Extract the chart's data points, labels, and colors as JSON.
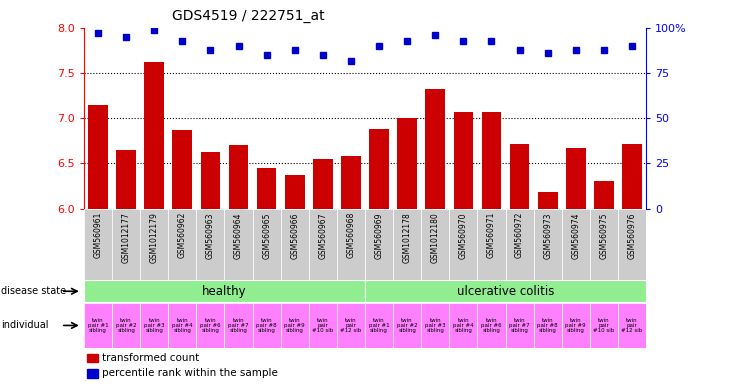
{
  "title": "GDS4519 / 222751_at",
  "bar_values": [
    7.15,
    6.65,
    7.62,
    6.87,
    6.63,
    6.7,
    6.45,
    6.37,
    6.55,
    6.58,
    6.88,
    7.0,
    7.32,
    7.07,
    7.07,
    6.72,
    6.18,
    6.67,
    6.3,
    6.72
  ],
  "percentile_values": [
    97,
    95,
    99,
    93,
    88,
    90,
    85,
    88,
    85,
    82,
    90,
    93,
    96,
    93,
    93,
    88,
    86,
    88,
    88,
    90
  ],
  "sample_ids": [
    "GSM560961",
    "GSM1012177",
    "GSM1012179",
    "GSM560962",
    "GSM560963",
    "GSM560964",
    "GSM560965",
    "GSM560966",
    "GSM560967",
    "GSM560968",
    "GSM560969",
    "GSM1012178",
    "GSM1012180",
    "GSM560970",
    "GSM560971",
    "GSM560972",
    "GSM560973",
    "GSM560974",
    "GSM560975",
    "GSM560976"
  ],
  "individual_labels": [
    "twin\npair #1\nsibling",
    "twin\npair #2\nsibling",
    "twin\npair #3\nsibling",
    "twin\npair #4\nsibling",
    "twin\npair #6\nsibling",
    "twin\npair #7\nsibling",
    "twin\npair #8\nsibling",
    "twin\npair #9\nsibling",
    "twin\npair\n#10 sib",
    "twin\npair\n#12 sib",
    "twin\npair #1\nsibling",
    "twin\npair #2\nsibling",
    "twin\npair #3\nsibling",
    "twin\npair #4\nsibling",
    "twin\npair #6\nsibling",
    "twin\npair #7\nsibling",
    "twin\npair #8\nsibling",
    "twin\npair #9\nsibling",
    "twin\npair\n#10 sib",
    "twin\npair\n#12 sib"
  ],
  "healthy_color": "#90EE90",
  "colitis_color": "#90EE90",
  "individual_color": "#FF80FF",
  "bar_color": "#CC0000",
  "percentile_color": "#0000CC",
  "tick_bg_color": "#CCCCCC",
  "ytick_left": [
    6.0,
    6.5,
    7.0,
    7.5,
    8.0
  ],
  "ytick_right": [
    0,
    25,
    50,
    75,
    100
  ],
  "ylim_left": [
    6.0,
    8.0
  ],
  "healthy_label": "healthy",
  "colitis_label": "ulcerative colitis",
  "legend_bar": "transformed count",
  "legend_percentile": "percentile rank within the sample",
  "n_healthy": 10,
  "n_total": 20
}
